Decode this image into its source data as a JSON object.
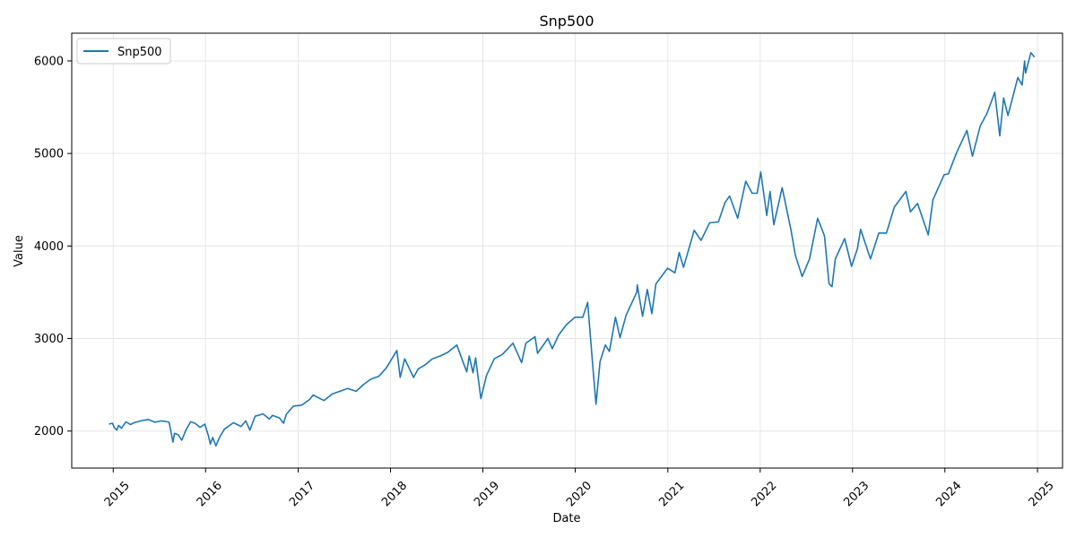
{
  "chart_data": {
    "type": "line",
    "title": "Snp500",
    "xlabel": "Date",
    "ylabel": "Value",
    "x_ticks": [
      "2015",
      "2016",
      "2017",
      "2018",
      "2019",
      "2020",
      "2021",
      "2022",
      "2023",
      "2024",
      "2025"
    ],
    "y_ticks": [
      2000,
      3000,
      4000,
      5000,
      6000
    ],
    "xlim": [
      "2014-07-21",
      "2025-04-10"
    ],
    "ylim": [
      1600,
      6300
    ],
    "grid": true,
    "legend": {
      "position": "top-left",
      "entries": [
        "Snp500"
      ]
    },
    "colors": {
      "series": "#1f77b4",
      "grid": "#e6e6e6"
    },
    "series": [
      {
        "name": "Snp500",
        "points": [
          [
            "2014-12-15",
            2075
          ],
          [
            "2014-12-29",
            2085
          ],
          [
            "2015-01-05",
            2040
          ],
          [
            "2015-01-15",
            2010
          ],
          [
            "2015-01-22",
            2060
          ],
          [
            "2015-02-03",
            2030
          ],
          [
            "2015-02-20",
            2100
          ],
          [
            "2015-03-10",
            2070
          ],
          [
            "2015-03-25",
            2090
          ],
          [
            "2015-04-20",
            2110
          ],
          [
            "2015-05-20",
            2125
          ],
          [
            "2015-06-15",
            2095
          ],
          [
            "2015-07-10",
            2110
          ],
          [
            "2015-07-24",
            2105
          ],
          [
            "2015-08-10",
            2095
          ],
          [
            "2015-08-25",
            1880
          ],
          [
            "2015-08-31",
            1975
          ],
          [
            "2015-09-15",
            1960
          ],
          [
            "2015-09-29",
            1900
          ],
          [
            "2015-10-15",
            2010
          ],
          [
            "2015-11-03",
            2100
          ],
          [
            "2015-11-20",
            2085
          ],
          [
            "2015-12-10",
            2040
          ],
          [
            "2015-12-29",
            2075
          ],
          [
            "2016-01-12",
            1950
          ],
          [
            "2016-01-20",
            1860
          ],
          [
            "2016-01-29",
            1930
          ],
          [
            "2016-02-11",
            1840
          ],
          [
            "2016-02-25",
            1930
          ],
          [
            "2016-03-15",
            2020
          ],
          [
            "2016-04-20",
            2090
          ],
          [
            "2016-05-20",
            2050
          ],
          [
            "2016-06-08",
            2110
          ],
          [
            "2016-06-24",
            2010
          ],
          [
            "2016-06-28",
            2040
          ],
          [
            "2016-07-15",
            2160
          ],
          [
            "2016-08-15",
            2185
          ],
          [
            "2016-09-09",
            2130
          ],
          [
            "2016-09-22",
            2170
          ],
          [
            "2016-10-20",
            2140
          ],
          [
            "2016-11-04",
            2085
          ],
          [
            "2016-11-15",
            2180
          ],
          [
            "2016-12-13",
            2270
          ],
          [
            "2017-01-15",
            2280
          ],
          [
            "2017-02-15",
            2340
          ],
          [
            "2017-03-01",
            2390
          ],
          [
            "2017-04-13",
            2330
          ],
          [
            "2017-05-15",
            2400
          ],
          [
            "2017-06-15",
            2430
          ],
          [
            "2017-07-15",
            2460
          ],
          [
            "2017-08-18",
            2430
          ],
          [
            "2017-09-15",
            2500
          ],
          [
            "2017-10-15",
            2560
          ],
          [
            "2017-11-15",
            2590
          ],
          [
            "2017-12-15",
            2680
          ],
          [
            "2018-01-26",
            2870
          ],
          [
            "2018-02-08",
            2580
          ],
          [
            "2018-02-26",
            2780
          ],
          [
            "2018-04-02",
            2580
          ],
          [
            "2018-04-20",
            2670
          ],
          [
            "2018-05-20",
            2720
          ],
          [
            "2018-06-15",
            2780
          ],
          [
            "2018-07-15",
            2810
          ],
          [
            "2018-08-15",
            2850
          ],
          [
            "2018-09-20",
            2930
          ],
          [
            "2018-10-10",
            2780
          ],
          [
            "2018-10-29",
            2640
          ],
          [
            "2018-11-08",
            2810
          ],
          [
            "2018-11-23",
            2630
          ],
          [
            "2018-12-03",
            2790
          ],
          [
            "2018-12-24",
            2350
          ],
          [
            "2019-01-15",
            2600
          ],
          [
            "2019-02-15",
            2780
          ],
          [
            "2019-03-20",
            2830
          ],
          [
            "2019-04-30",
            2950
          ],
          [
            "2019-06-03",
            2740
          ],
          [
            "2019-06-20",
            2950
          ],
          [
            "2019-07-26",
            3020
          ],
          [
            "2019-08-05",
            2840
          ],
          [
            "2019-09-15",
            3000
          ],
          [
            "2019-10-02",
            2890
          ],
          [
            "2019-10-28",
            3040
          ],
          [
            "2019-11-27",
            3150
          ],
          [
            "2019-12-31",
            3230
          ],
          [
            "2020-01-31",
            3230
          ],
          [
            "2020-02-19",
            3390
          ],
          [
            "2020-03-09",
            2750
          ],
          [
            "2020-03-23",
            2290
          ],
          [
            "2020-04-08",
            2750
          ],
          [
            "2020-04-29",
            2930
          ],
          [
            "2020-05-15",
            2860
          ],
          [
            "2020-06-08",
            3230
          ],
          [
            "2020-06-26",
            3010
          ],
          [
            "2020-07-20",
            3250
          ],
          [
            "2020-08-31",
            3500
          ],
          [
            "2020-09-02",
            3580
          ],
          [
            "2020-09-23",
            3240
          ],
          [
            "2020-10-12",
            3530
          ],
          [
            "2020-10-30",
            3270
          ],
          [
            "2020-11-15",
            3590
          ],
          [
            "2020-12-31",
            3760
          ],
          [
            "2021-01-29",
            3710
          ],
          [
            "2021-02-15",
            3930
          ],
          [
            "2021-03-04",
            3770
          ],
          [
            "2021-04-15",
            4170
          ],
          [
            "2021-05-12",
            4060
          ],
          [
            "2021-06-15",
            4250
          ],
          [
            "2021-07-20",
            4260
          ],
          [
            "2021-08-15",
            4470
          ],
          [
            "2021-09-02",
            4540
          ],
          [
            "2021-10-04",
            4300
          ],
          [
            "2021-11-05",
            4700
          ],
          [
            "2021-11-30",
            4570
          ],
          [
            "2021-12-20",
            4570
          ],
          [
            "2022-01-03",
            4800
          ],
          [
            "2022-01-27",
            4330
          ],
          [
            "2022-02-09",
            4590
          ],
          [
            "2022-02-24",
            4230
          ],
          [
            "2022-03-29",
            4630
          ],
          [
            "2022-05-03",
            4170
          ],
          [
            "2022-05-20",
            3900
          ],
          [
            "2022-06-16",
            3670
          ],
          [
            "2022-07-15",
            3860
          ],
          [
            "2022-08-16",
            4300
          ],
          [
            "2022-09-12",
            4110
          ],
          [
            "2022-09-30",
            3590
          ],
          [
            "2022-10-12",
            3560
          ],
          [
            "2022-10-25",
            3860
          ],
          [
            "2022-12-01",
            4080
          ],
          [
            "2022-12-28",
            3780
          ],
          [
            "2023-01-20",
            3970
          ],
          [
            "2023-02-02",
            4180
          ],
          [
            "2023-03-13",
            3860
          ],
          [
            "2023-04-15",
            4140
          ],
          [
            "2023-05-15",
            4140
          ],
          [
            "2023-06-15",
            4420
          ],
          [
            "2023-07-31",
            4590
          ],
          [
            "2023-08-18",
            4370
          ],
          [
            "2023-09-15",
            4460
          ],
          [
            "2023-10-27",
            4120
          ],
          [
            "2023-11-15",
            4500
          ],
          [
            "2023-12-29",
            4770
          ],
          [
            "2024-01-15",
            4780
          ],
          [
            "2024-02-15",
            5000
          ],
          [
            "2024-03-28",
            5250
          ],
          [
            "2024-04-19",
            4970
          ],
          [
            "2024-05-20",
            5300
          ],
          [
            "2024-06-15",
            5430
          ],
          [
            "2024-07-16",
            5660
          ],
          [
            "2024-08-05",
            5190
          ],
          [
            "2024-08-20",
            5600
          ],
          [
            "2024-09-06",
            5410
          ],
          [
            "2024-10-15",
            5820
          ],
          [
            "2024-11-01",
            5740
          ],
          [
            "2024-11-11",
            6000
          ],
          [
            "2024-11-15",
            5870
          ],
          [
            "2024-12-06",
            6090
          ],
          [
            "2024-12-20",
            6040
          ]
        ]
      }
    ]
  }
}
